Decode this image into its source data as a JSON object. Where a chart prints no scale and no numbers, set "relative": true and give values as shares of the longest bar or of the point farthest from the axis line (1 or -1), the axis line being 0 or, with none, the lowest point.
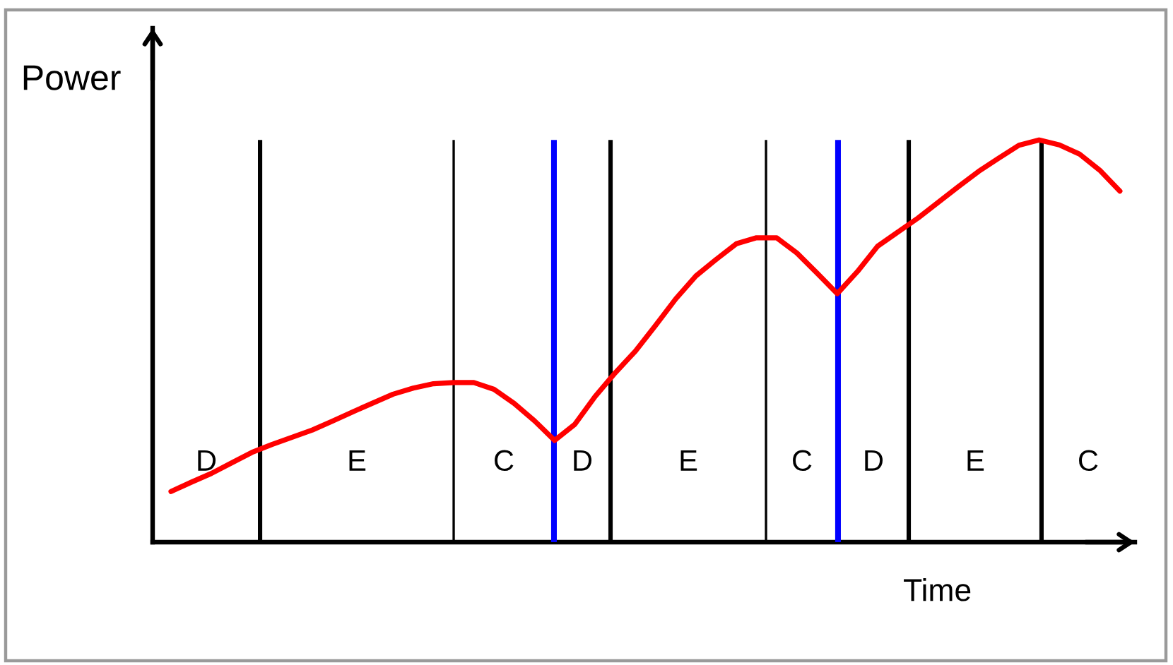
{
  "chart_data": {
    "type": "line",
    "xlabel": "Time",
    "ylabel": "Power",
    "relative": true,
    "grid": "x",
    "categories": [
      null,
      null,
      null,
      null,
      null,
      null,
      null,
      null,
      null,
      null,
      null,
      null,
      null,
      null,
      null,
      null,
      null,
      null,
      null,
      null,
      null,
      null,
      null,
      null,
      null,
      null,
      null,
      null,
      null,
      null,
      null,
      null,
      null,
      null,
      null,
      null,
      null,
      null,
      null,
      null,
      null,
      null,
      null,
      null,
      null,
      null,
      null,
      null
    ],
    "series": [
      {
        "color": "#ff0000",
        "values": [
          0.126,
          0.149,
          0.171,
          0.197,
          0.223,
          0.243,
          0.261,
          0.279,
          0.301,
          0.324,
          0.346,
          0.368,
          0.383,
          0.394,
          0.397,
          0.397,
          0.38,
          0.345,
          0.302,
          0.253,
          0.293,
          0.362,
          0.421,
          0.475,
          0.539,
          0.605,
          0.662,
          0.703,
          0.742,
          0.757,
          0.757,
          0.719,
          0.669,
          0.618,
          0.673,
          0.736,
          0.771,
          0.806,
          0.845,
          0.884,
          0.922,
          0.955,
          0.987,
          1.0,
          0.988,
          0.965,
          0.925,
          0.873
        ]
      }
    ],
    "annotations": [
      "D",
      "E",
      "C",
      "D",
      "E",
      "C",
      "D",
      "E",
      "C"
    ]
  }
}
